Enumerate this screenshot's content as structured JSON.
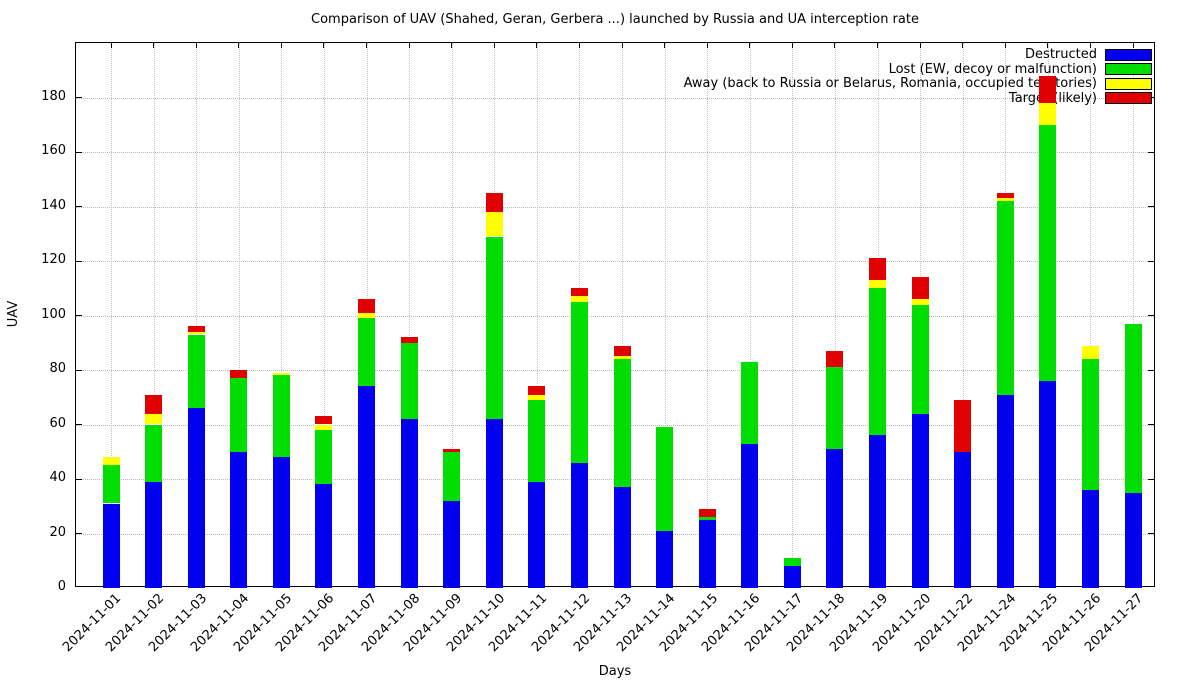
{
  "title": "Comparison of UAV (Shahed, Geran, Gerbera ...) launched by Russia and UA interception rate",
  "axes": {
    "x_label": "Days",
    "y_label": "UAV",
    "y_ticks": [
      0,
      20,
      40,
      60,
      80,
      100,
      120,
      140,
      160,
      180
    ],
    "y_max": 200
  },
  "legend": [
    {
      "label": "Destructed",
      "color": "#0000ee"
    },
    {
      "label": "Lost (EW, decoy or malfunction)",
      "color": "#00dd00"
    },
    {
      "label": "Away (back to Russia or Belarus, Romania, occupied territories)",
      "color": "#ffff00"
    },
    {
      "label": "Target (likely)",
      "color": "#e00000"
    }
  ],
  "chart_data": {
    "type": "bar",
    "stacked": true,
    "title": "Comparison of UAV (Shahed, Geran, Gerbera ...) launched by Russia and UA interception rate",
    "xlabel": "Days",
    "ylabel": "UAV",
    "ylim": [
      0,
      200
    ],
    "grid": true,
    "legend_position": "top-right",
    "categories": [
      "2024-11-01",
      "2024-11-02",
      "2024-11-03",
      "2024-11-04",
      "2024-11-05",
      "2024-11-06",
      "2024-11-07",
      "2024-11-08",
      "2024-11-09",
      "2024-11-10",
      "2024-11-11",
      "2024-11-12",
      "2024-11-13",
      "2024-11-14",
      "2024-11-15",
      "2024-11-16",
      "2024-11-17",
      "2024-11-18",
      "2024-11-19",
      "2024-11-20",
      "2024-11-22",
      "2024-11-24",
      "2024-11-25",
      "2024-11-26",
      "2024-11-27"
    ],
    "series": [
      {
        "name": "Destructed",
        "color": "#0000ee",
        "values": [
          31,
          39,
          66,
          50,
          48,
          38,
          74,
          62,
          32,
          62,
          39,
          46,
          37,
          21,
          25,
          53,
          8,
          51,
          56,
          64,
          50,
          71,
          76,
          36,
          35
        ]
      },
      {
        "name": "Lost (EW, decoy or malfunction)",
        "color": "#00dd00",
        "values": [
          14,
          21,
          27,
          27,
          30,
          20,
          25,
          28,
          18,
          67,
          30,
          59,
          47,
          38,
          1,
          30,
          3,
          30,
          54,
          40,
          0,
          71,
          94,
          48,
          62
        ]
      },
      {
        "name": "Away (back to Russia or Belarus, Romania, occupied territories)",
        "color": "#ffff00",
        "values": [
          3,
          4,
          1,
          0,
          1,
          2,
          2,
          0,
          0,
          9,
          2,
          2,
          1,
          0,
          0,
          0,
          0,
          0,
          3,
          2,
          0,
          1,
          8,
          5,
          0
        ]
      },
      {
        "name": "Target (likely)",
        "color": "#e00000",
        "values": [
          0,
          7,
          2,
          3,
          0,
          3,
          5,
          2,
          1,
          7,
          3,
          3,
          4,
          0,
          3,
          0,
          0,
          6,
          8,
          8,
          19,
          2,
          10,
          0,
          0
        ]
      }
    ]
  }
}
